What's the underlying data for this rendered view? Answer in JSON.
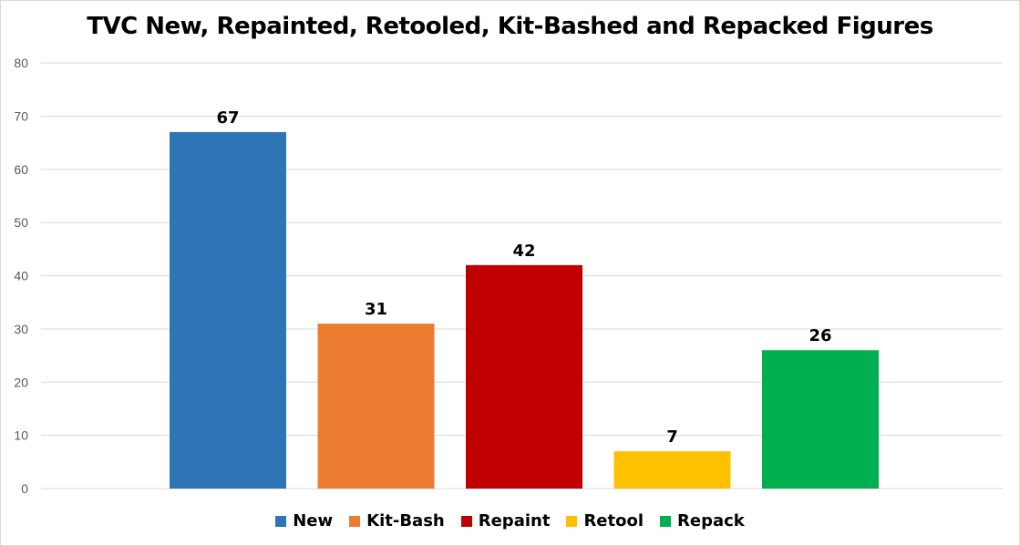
{
  "chart_data": {
    "type": "bar",
    "title": "TVC New, Repainted, Retooled, Kit-Bashed and Repacked Figures",
    "categories": [
      "New",
      "Kit-Bash",
      "Repaint",
      "Retool",
      "Repack"
    ],
    "values": [
      67,
      31,
      42,
      7,
      26
    ],
    "colors": [
      "#2E75B6",
      "#ED7D31",
      "#C00000",
      "#FFC000",
      "#00B050"
    ],
    "xlabel": "",
    "ylabel": "",
    "ylim": [
      0,
      80
    ],
    "yticks": [
      "0",
      "10",
      "20",
      "30",
      "40",
      "50",
      "60",
      "70",
      "80"
    ],
    "grid": true,
    "legend": "bottom"
  }
}
